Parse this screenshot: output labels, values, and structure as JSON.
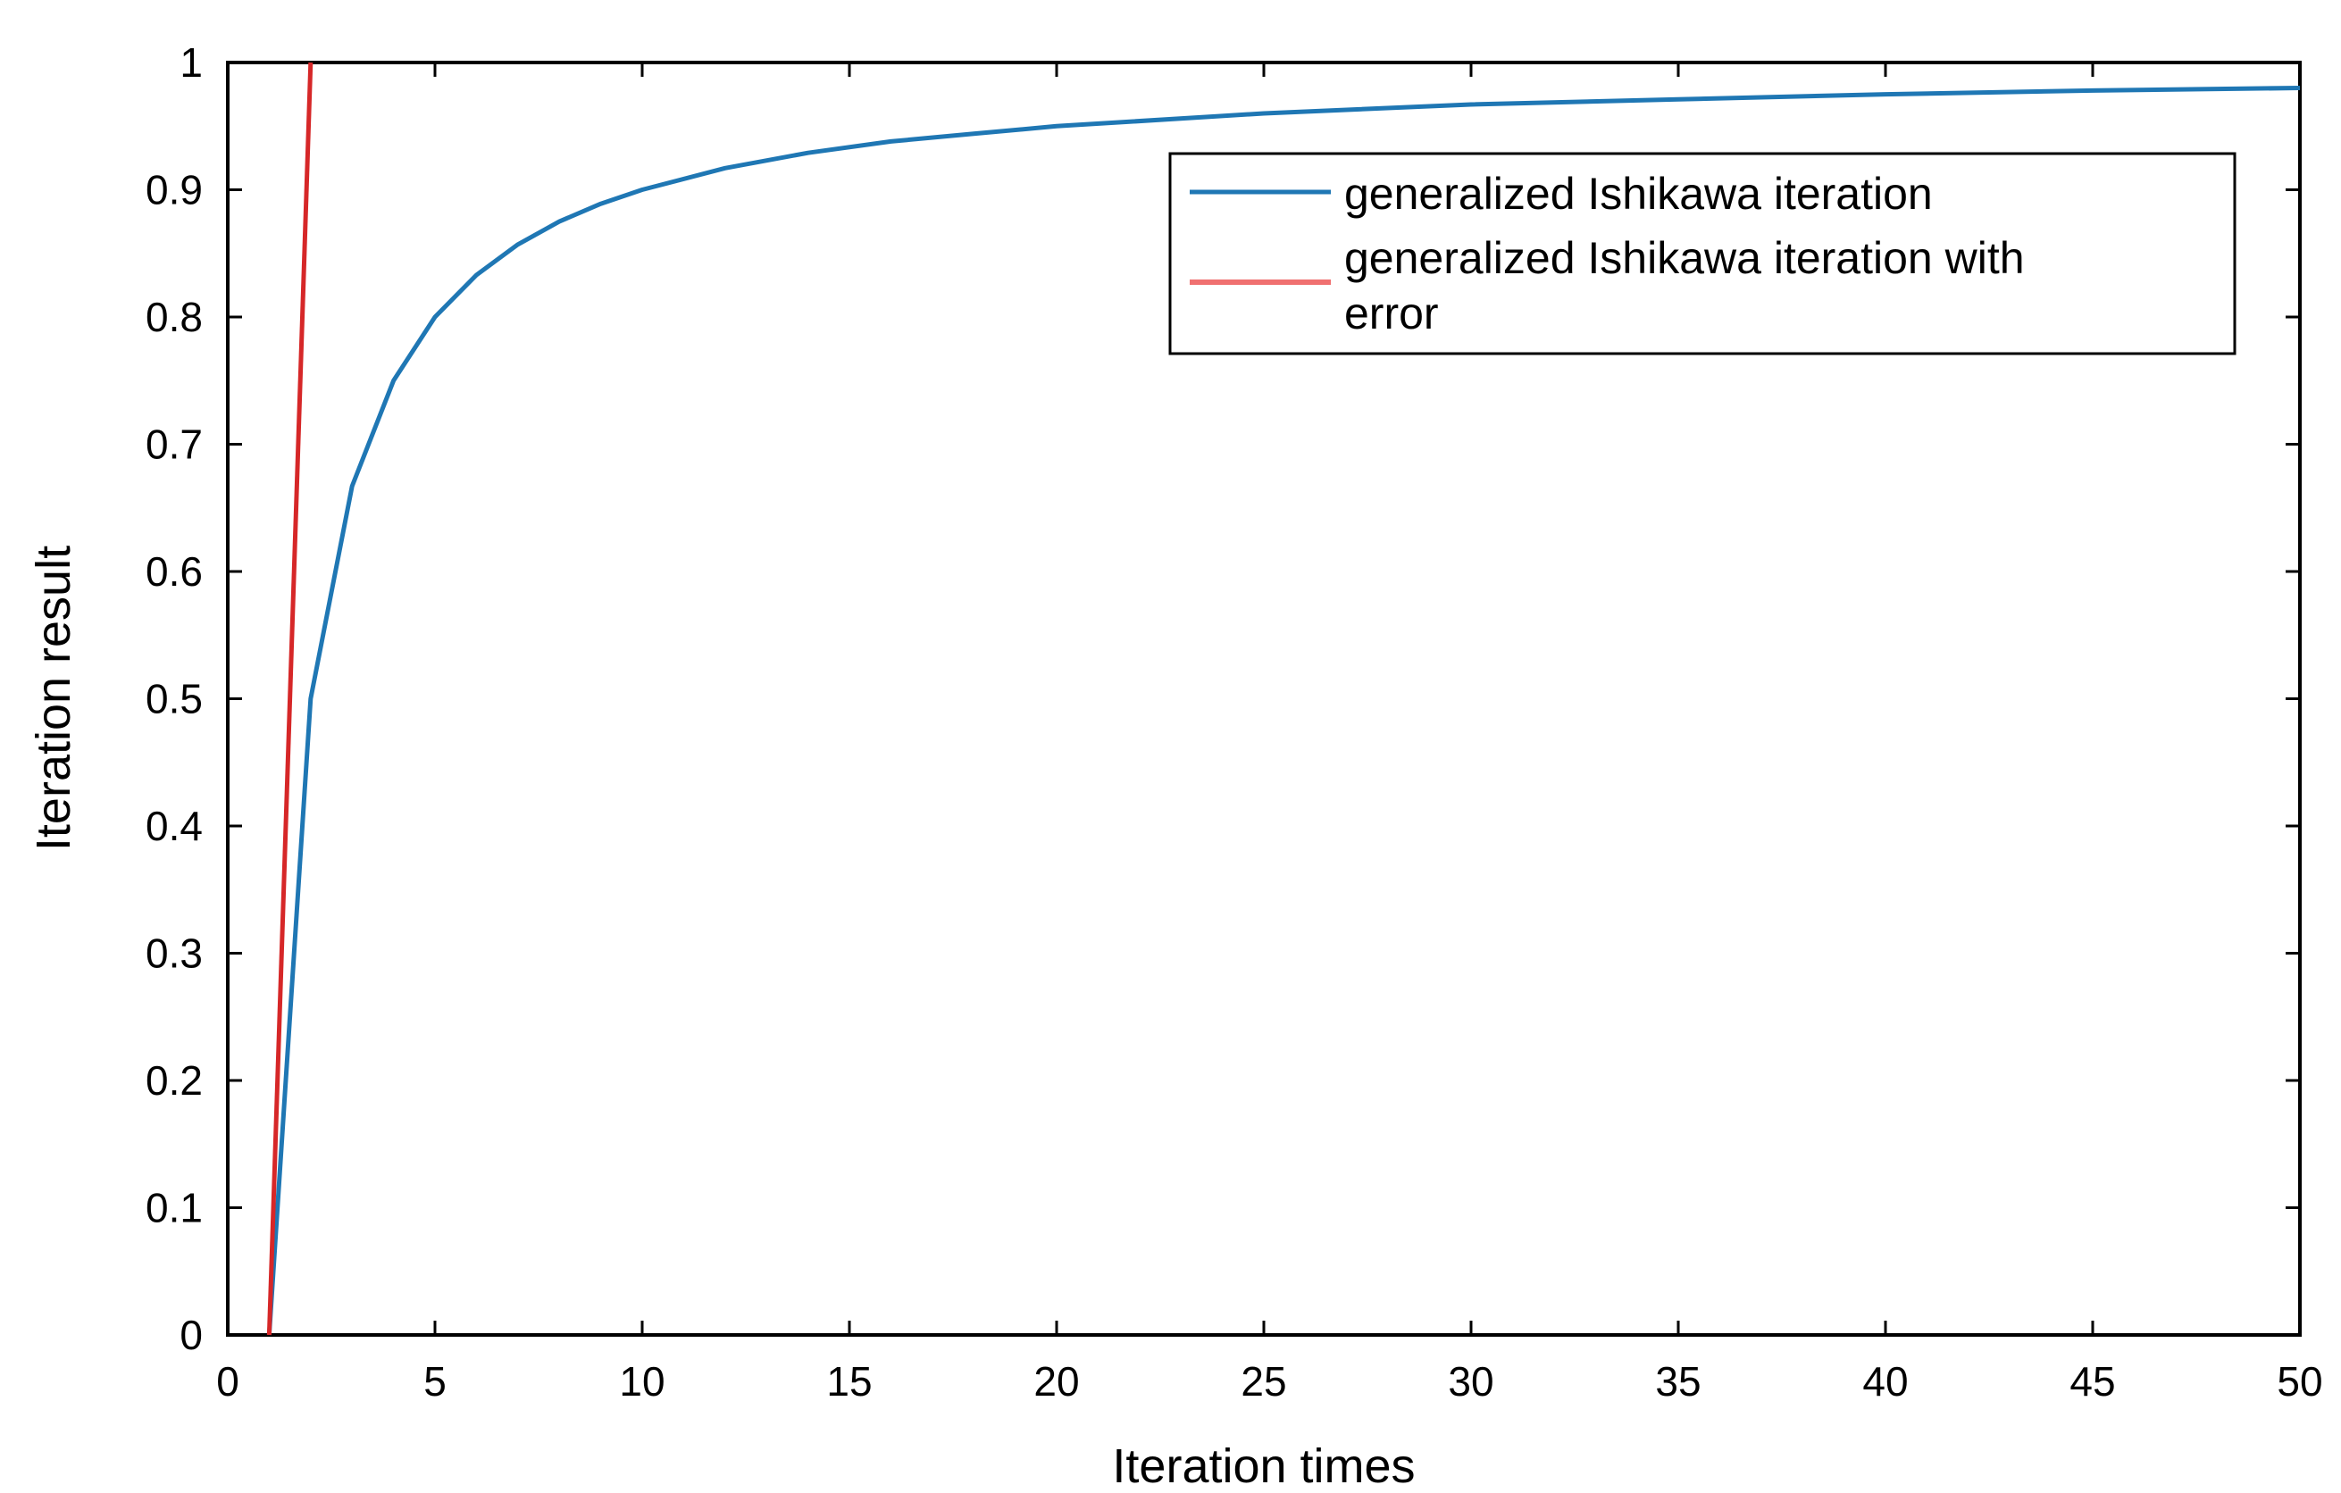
{
  "chart_data": {
    "type": "line",
    "xlabel": "Iteration times",
    "ylabel": "Iteration result",
    "xlim": [
      0,
      50
    ],
    "ylim": [
      0,
      1
    ],
    "xticks": [
      0,
      5,
      10,
      15,
      20,
      25,
      30,
      35,
      40,
      45,
      50
    ],
    "yticks": [
      0,
      0.1,
      0.2,
      0.3,
      0.4,
      0.5,
      0.6,
      0.7,
      0.8,
      0.9,
      1
    ],
    "ytick_labels": [
      "0",
      "0.1",
      "0.2",
      "0.3",
      "0.4",
      "0.5",
      "0.6",
      "0.7",
      "0.8",
      "0.9",
      "1"
    ],
    "grid": false,
    "legend_position": "top-right",
    "series": [
      {
        "name": "generalized Ishikawa iteration",
        "color": "#1f77b4",
        "x": [
          1,
          2,
          3,
          4,
          5,
          6,
          7,
          8,
          9,
          10,
          12,
          14,
          16,
          18,
          20,
          25,
          30,
          35,
          40,
          45,
          50
        ],
        "y": [
          0,
          0.5,
          0.667,
          0.75,
          0.8,
          0.833,
          0.857,
          0.875,
          0.889,
          0.9,
          0.917,
          0.929,
          0.938,
          0.944,
          0.95,
          0.96,
          0.967,
          0.971,
          0.975,
          0.978,
          0.98
        ]
      },
      {
        "name": "generalized Ishikawa iteration with error",
        "color": "#d62728",
        "x": [
          1,
          2
        ],
        "y": [
          0,
          1
        ]
      }
    ]
  }
}
